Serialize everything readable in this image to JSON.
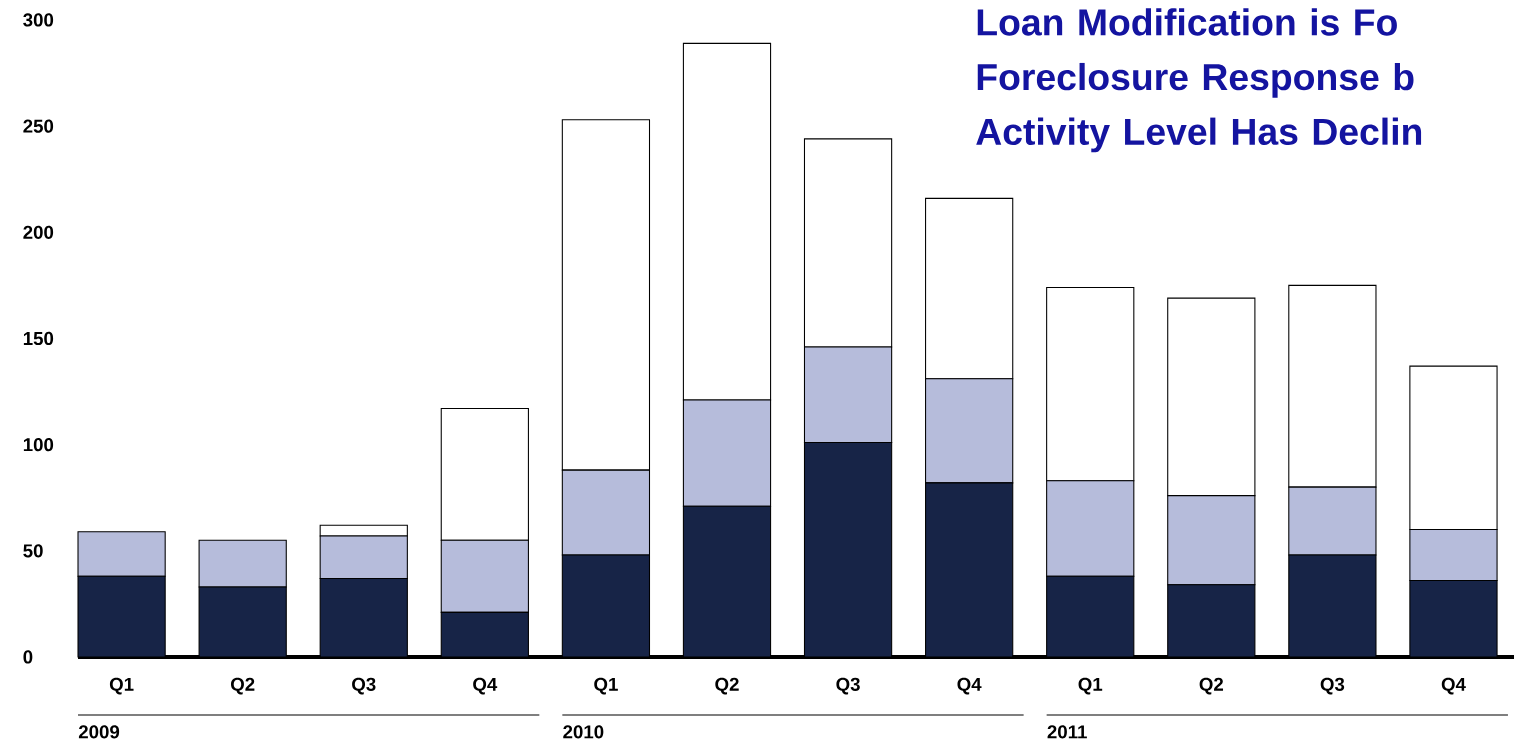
{
  "chart_data": {
    "type": "bar",
    "stacked": true,
    "title": "Loan Modification is Fo Foreclosure Response b Activity Level Has Declin",
    "categories": [
      "Q1",
      "Q2",
      "Q3",
      "Q4",
      "Q1",
      "Q2",
      "Q3",
      "Q4",
      "Q1",
      "Q2",
      "Q3",
      "Q4"
    ],
    "series": [
      {
        "color": "#172447",
        "values": [
          38,
          33,
          37,
          21,
          48,
          71,
          101,
          82,
          38,
          34,
          48,
          36
        ]
      },
      {
        "color": "#b6bcdb",
        "values": [
          21,
          22,
          20,
          34,
          40,
          50,
          45,
          49,
          45,
          42,
          32,
          24
        ]
      },
      {
        "color": "#ffffff",
        "values": [
          0,
          0,
          5,
          62,
          165,
          168,
          98,
          85,
          91,
          93,
          95,
          77
        ]
      }
    ],
    "ylim": [
      0,
      300
    ],
    "yticks": [
      0,
      50,
      100,
      150,
      200,
      250,
      300
    ],
    "annotations": [
      "2009",
      "2010",
      "2011"
    ],
    "grid": false
  }
}
